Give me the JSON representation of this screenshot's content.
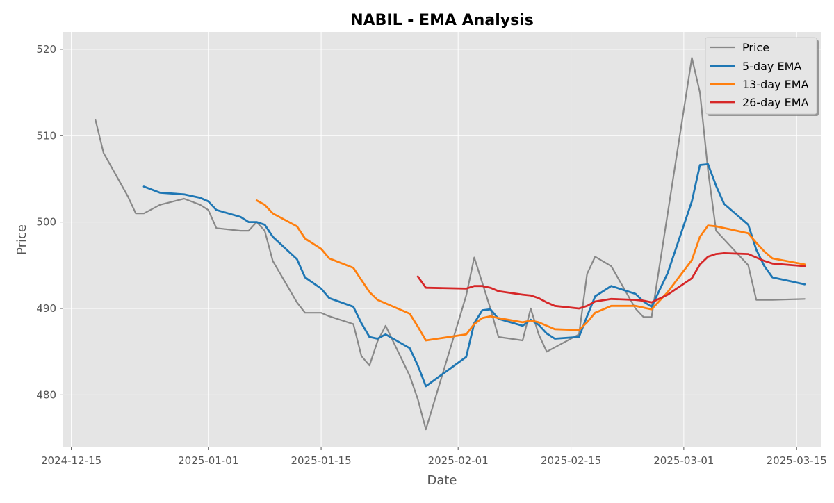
{
  "chart_data": {
    "type": "line",
    "title": "NABIL - EMA Analysis",
    "xlabel": "Date",
    "ylabel": "Price",
    "grid": true,
    "legend_position": "top-right",
    "xlim": [
      "2024-12-14",
      "2025-03-18"
    ],
    "ylim": [
      474,
      522
    ],
    "x_ticks": [
      "2024-12-15",
      "2025-01-01",
      "2025-01-15",
      "2025-02-01",
      "2025-02-15",
      "2025-03-01",
      "2025-03-15"
    ],
    "y_ticks": [
      480,
      490,
      500,
      510,
      520
    ],
    "series": [
      {
        "name": "Price",
        "color": "#888888",
        "width": 2.2,
        "points": [
          [
            "2024-12-18",
            511.8
          ],
          [
            "2024-12-19",
            508
          ],
          [
            "2024-12-22",
            503
          ],
          [
            "2024-12-23",
            501
          ],
          [
            "2024-12-24",
            501
          ],
          [
            "2024-12-26",
            502
          ],
          [
            "2024-12-29",
            502.7
          ],
          [
            "2024-12-31",
            502
          ],
          [
            "2025-01-01",
            501.4
          ],
          [
            "2025-01-02",
            499.3
          ],
          [
            "2025-01-05",
            499
          ],
          [
            "2025-01-06",
            499
          ],
          [
            "2025-01-07",
            500
          ],
          [
            "2025-01-08",
            499
          ],
          [
            "2025-01-09",
            495.5
          ],
          [
            "2025-01-12",
            490.7
          ],
          [
            "2025-01-13",
            489.5
          ],
          [
            "2025-01-15",
            489.5
          ],
          [
            "2025-01-16",
            489.1
          ],
          [
            "2025-01-19",
            488.2
          ],
          [
            "2025-01-20",
            484.5
          ],
          [
            "2025-01-21",
            483.4
          ],
          [
            "2025-01-22",
            486.2
          ],
          [
            "2025-01-23",
            488
          ],
          [
            "2025-01-26",
            482.2
          ],
          [
            "2025-01-27",
            479.5
          ],
          [
            "2025-01-28",
            476
          ],
          [
            "2025-02-02",
            491.5
          ],
          [
            "2025-02-03",
            495.9
          ],
          [
            "2025-02-05",
            490
          ],
          [
            "2025-02-06",
            486.7
          ],
          [
            "2025-02-09",
            486.3
          ],
          [
            "2025-02-10",
            490
          ],
          [
            "2025-02-11",
            487
          ],
          [
            "2025-02-12",
            485
          ],
          [
            "2025-02-16",
            487
          ],
          [
            "2025-02-17",
            494
          ],
          [
            "2025-02-18",
            496
          ],
          [
            "2025-02-20",
            494.9
          ],
          [
            "2025-02-23",
            490
          ],
          [
            "2025-02-24",
            489
          ],
          [
            "2025-02-25",
            489
          ],
          [
            "2025-02-27",
            501
          ],
          [
            "2025-03-02",
            519
          ],
          [
            "2025-03-03",
            515
          ],
          [
            "2025-03-04",
            506
          ],
          [
            "2025-03-05",
            499
          ],
          [
            "2025-03-06",
            498
          ],
          [
            "2025-03-09",
            495
          ],
          [
            "2025-03-10",
            491
          ],
          [
            "2025-03-12",
            491
          ],
          [
            "2025-03-16",
            491.1
          ]
        ]
      },
      {
        "name": "5-day EMA",
        "color": "#1f77b4",
        "width": 2.8,
        "points": [
          [
            "2024-12-24",
            504.1
          ],
          [
            "2024-12-26",
            503.4
          ],
          [
            "2024-12-29",
            503.2
          ],
          [
            "2024-12-31",
            502.8
          ],
          [
            "2025-01-01",
            502.4
          ],
          [
            "2025-01-02",
            501.4
          ],
          [
            "2025-01-05",
            500.6
          ],
          [
            "2025-01-06",
            500
          ],
          [
            "2025-01-07",
            500
          ],
          [
            "2025-01-08",
            499.7
          ],
          [
            "2025-01-09",
            498.3
          ],
          [
            "2025-01-12",
            495.7
          ],
          [
            "2025-01-13",
            493.6
          ],
          [
            "2025-01-15",
            492.3
          ],
          [
            "2025-01-16",
            491.2
          ],
          [
            "2025-01-19",
            490.2
          ],
          [
            "2025-01-20",
            488.3
          ],
          [
            "2025-01-21",
            486.7
          ],
          [
            "2025-01-22",
            486.5
          ],
          [
            "2025-01-23",
            487
          ],
          [
            "2025-01-26",
            485.4
          ],
          [
            "2025-01-27",
            483.4
          ],
          [
            "2025-01-28",
            481
          ],
          [
            "2025-02-02",
            484.4
          ],
          [
            "2025-02-03",
            488.3
          ],
          [
            "2025-02-04",
            489.8
          ],
          [
            "2025-02-05",
            489.9
          ],
          [
            "2025-02-06",
            488.8
          ],
          [
            "2025-02-09",
            488
          ],
          [
            "2025-02-10",
            488.7
          ],
          [
            "2025-02-11",
            488.1
          ],
          [
            "2025-02-12",
            487.1
          ],
          [
            "2025-02-13",
            486.5
          ],
          [
            "2025-02-16",
            486.7
          ],
          [
            "2025-02-17",
            489.1
          ],
          [
            "2025-02-18",
            491.4
          ],
          [
            "2025-02-20",
            492.6
          ],
          [
            "2025-02-23",
            491.7
          ],
          [
            "2025-02-24",
            490.8
          ],
          [
            "2025-02-25",
            490.2
          ],
          [
            "2025-02-27",
            494.1
          ],
          [
            "2025-03-02",
            502.4
          ],
          [
            "2025-03-03",
            506.6
          ],
          [
            "2025-03-04",
            506.7
          ],
          [
            "2025-03-05",
            504.2
          ],
          [
            "2025-03-06",
            502.1
          ],
          [
            "2025-03-09",
            499.7
          ],
          [
            "2025-03-10",
            496.8
          ],
          [
            "2025-03-11",
            494.9
          ],
          [
            "2025-03-12",
            493.6
          ],
          [
            "2025-03-16",
            492.8
          ]
        ]
      },
      {
        "name": "13-day EMA",
        "color": "#ff7f0e",
        "width": 2.8,
        "points": [
          [
            "2025-01-07",
            502.5
          ],
          [
            "2025-01-08",
            502
          ],
          [
            "2025-01-09",
            501
          ],
          [
            "2025-01-12",
            499.5
          ],
          [
            "2025-01-13",
            498.1
          ],
          [
            "2025-01-15",
            496.9
          ],
          [
            "2025-01-16",
            495.8
          ],
          [
            "2025-01-19",
            494.7
          ],
          [
            "2025-01-20",
            493.3
          ],
          [
            "2025-01-21",
            491.9
          ],
          [
            "2025-01-22",
            491
          ],
          [
            "2025-01-26",
            489.4
          ],
          [
            "2025-01-27",
            487.9
          ],
          [
            "2025-01-28",
            486.3
          ],
          [
            "2025-02-02",
            487
          ],
          [
            "2025-02-03",
            488.2
          ],
          [
            "2025-02-04",
            488.9
          ],
          [
            "2025-02-05",
            489.1
          ],
          [
            "2025-02-06",
            488.9
          ],
          [
            "2025-02-09",
            488.4
          ],
          [
            "2025-02-10",
            488.6
          ],
          [
            "2025-02-11",
            488.4
          ],
          [
            "2025-02-12",
            488
          ],
          [
            "2025-02-13",
            487.6
          ],
          [
            "2025-02-16",
            487.5
          ],
          [
            "2025-02-17",
            488.4
          ],
          [
            "2025-02-18",
            489.5
          ],
          [
            "2025-02-20",
            490.3
          ],
          [
            "2025-02-23",
            490.3
          ],
          [
            "2025-02-24",
            490.1
          ],
          [
            "2025-02-25",
            489.9
          ],
          [
            "2025-02-27",
            491.9
          ],
          [
            "2025-03-02",
            495.6
          ],
          [
            "2025-03-03",
            498.3
          ],
          [
            "2025-03-04",
            499.6
          ],
          [
            "2025-03-05",
            499.5
          ],
          [
            "2025-03-06",
            499.3
          ],
          [
            "2025-03-09",
            498.7
          ],
          [
            "2025-03-10",
            497.6
          ],
          [
            "2025-03-11",
            496.6
          ],
          [
            "2025-03-12",
            495.8
          ],
          [
            "2025-03-16",
            495.1
          ]
        ]
      },
      {
        "name": "26-day EMA",
        "color": "#d62728",
        "width": 2.8,
        "points": [
          [
            "2025-01-27",
            493.7
          ],
          [
            "2025-01-28",
            492.4
          ],
          [
            "2025-02-02",
            492.3
          ],
          [
            "2025-02-03",
            492.6
          ],
          [
            "2025-02-04",
            492.6
          ],
          [
            "2025-02-05",
            492.4
          ],
          [
            "2025-02-06",
            492
          ],
          [
            "2025-02-09",
            491.6
          ],
          [
            "2025-02-10",
            491.5
          ],
          [
            "2025-02-11",
            491.2
          ],
          [
            "2025-02-12",
            490.7
          ],
          [
            "2025-02-13",
            490.3
          ],
          [
            "2025-02-16",
            490
          ],
          [
            "2025-02-17",
            490.3
          ],
          [
            "2025-02-18",
            490.8
          ],
          [
            "2025-02-20",
            491.1
          ],
          [
            "2025-02-23",
            491
          ],
          [
            "2025-02-24",
            490.9
          ],
          [
            "2025-02-25",
            490.7
          ],
          [
            "2025-02-27",
            491.6
          ],
          [
            "2025-03-02",
            493.5
          ],
          [
            "2025-03-03",
            495.1
          ],
          [
            "2025-03-04",
            496
          ],
          [
            "2025-03-05",
            496.3
          ],
          [
            "2025-03-06",
            496.4
          ],
          [
            "2025-03-09",
            496.3
          ],
          [
            "2025-03-10",
            495.9
          ],
          [
            "2025-03-11",
            495.5
          ],
          [
            "2025-03-12",
            495.2
          ],
          [
            "2025-03-16",
            494.9
          ]
        ]
      }
    ]
  }
}
